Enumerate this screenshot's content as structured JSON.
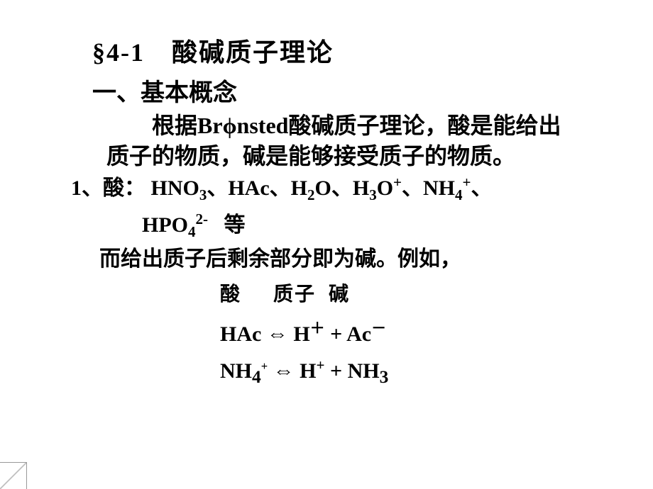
{
  "title": "§4-1　酸碱质子理论",
  "subtitle": "一、基本概念",
  "intro": {
    "line1_prefix": "根据",
    "bronsted_pre": "Br",
    "bronsted_phi": "ϕ",
    "bronsted_post": "nsted",
    "line1_suffix": "酸碱质子理论，酸是能给出",
    "line2": "质子的物质，碱是能够接受质子的物质。"
  },
  "acid_list": {
    "prefix": "1、酸：",
    "items": [
      "HNO",
      "HAc",
      "H",
      "O",
      "H",
      "O",
      "NH",
      "HPO"
    ],
    "subs": {
      "hno3": "3",
      "h2o_2": "2",
      "h3o_3": "3",
      "nh4_4": "4",
      "hpo4_4": "4"
    },
    "sups": {
      "h3o_plus": "+",
      "nh4_plus": "+",
      "hpo4_2minus": "2-"
    },
    "sep": "、",
    "suffix": " 等"
  },
  "example_intro": "而给出质子后剩余部分即为碱。例如，",
  "labels": {
    "acid": "酸",
    "proton": "质子",
    "base": "碱"
  },
  "eq1": {
    "lhs": "HAc",
    "arrow": "⇔",
    "h": "H",
    "plus_sup": "＋",
    "plus_op": "+",
    "ac": "Ac",
    "minus_sup": "－"
  },
  "eq2": {
    "nh": "NH",
    "four": "4",
    "plus_small": "+",
    "arrow": "⇔",
    "h": "H",
    "plus_sup": "+",
    "plus_op": "+",
    "three": "3",
    "nh2": "NH"
  },
  "style": {
    "bg": "#ffffff",
    "text_color": "#000000",
    "title_fontsize": 36,
    "body_fontsize": 30
  }
}
